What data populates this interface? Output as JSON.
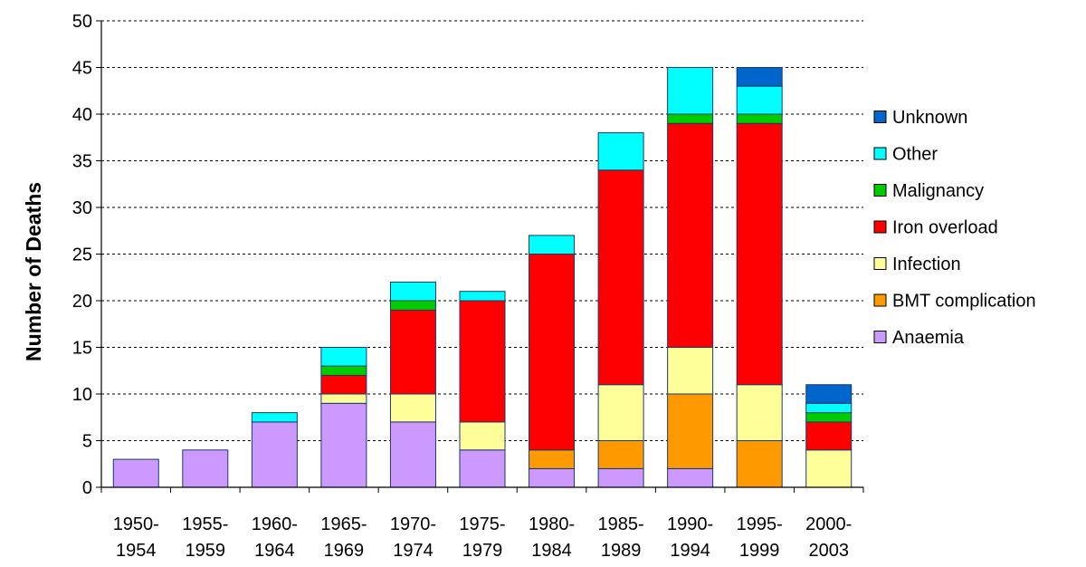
{
  "chart_data": {
    "type": "bar",
    "stacked": true,
    "title": "",
    "xlabel": "",
    "ylabel": "Number of Deaths",
    "ylim": [
      0,
      50
    ],
    "yticks": [
      0,
      5,
      10,
      15,
      20,
      25,
      30,
      35,
      40,
      45,
      50
    ],
    "grid": "horizontal-dashed",
    "legend_position": "right",
    "categories": [
      [
        "1950-",
        "1954"
      ],
      [
        "1955-",
        "1959"
      ],
      [
        "1960-",
        "1964"
      ],
      [
        "1965-",
        "1969"
      ],
      [
        "1970-",
        "1974"
      ],
      [
        "1975-",
        "1979"
      ],
      [
        "1980-",
        "1984"
      ],
      [
        "1985-",
        "1989"
      ],
      [
        "1990-",
        "1994"
      ],
      [
        "1995-",
        "1999"
      ],
      [
        "2000-",
        "2003"
      ]
    ],
    "series": [
      {
        "name": "Anaemia",
        "color": "#cc99ff",
        "values": [
          3,
          4,
          7,
          9,
          7,
          4,
          2,
          2,
          2,
          0,
          0
        ]
      },
      {
        "name": "BMT complication",
        "color": "#ff9900",
        "values": [
          0,
          0,
          0,
          0,
          0,
          0,
          2,
          3,
          8,
          5,
          0
        ]
      },
      {
        "name": "Infection",
        "color": "#ffff99",
        "values": [
          0,
          0,
          0,
          1,
          3,
          3,
          0,
          6,
          5,
          6,
          4
        ]
      },
      {
        "name": "Iron overload",
        "color": "#ff0000",
        "values": [
          0,
          0,
          0,
          2,
          9,
          13,
          21,
          23,
          24,
          28,
          3
        ]
      },
      {
        "name": "Malignancy",
        "color": "#00cc00",
        "values": [
          0,
          0,
          0,
          1,
          1,
          0,
          0,
          0,
          1,
          1,
          1
        ]
      },
      {
        "name": "Other",
        "color": "#00ffff",
        "values": [
          0,
          0,
          1,
          2,
          2,
          1,
          2,
          4,
          5,
          3,
          1
        ]
      },
      {
        "name": "Unknown",
        "color": "#0066cc",
        "values": [
          0,
          0,
          0,
          0,
          0,
          0,
          0,
          0,
          0,
          2,
          2
        ]
      }
    ]
  }
}
